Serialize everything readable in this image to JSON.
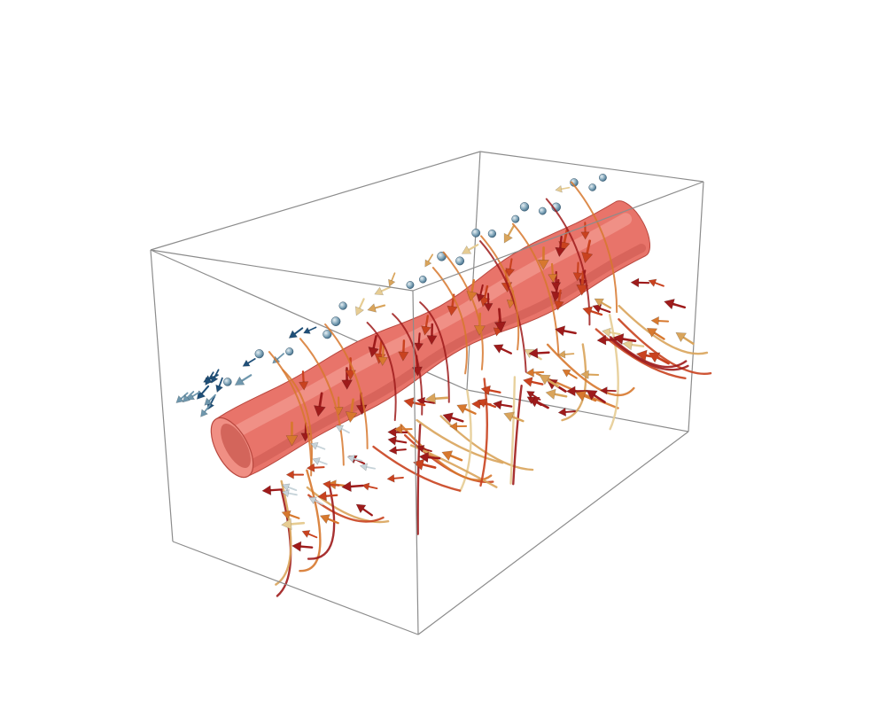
{
  "scene": {
    "background": "#ffffff",
    "box_color": "#8c8c8c",
    "tube_color": "#e8746a",
    "tube_highlight": "#f6a79c",
    "tube_shadow": "#b9483f",
    "palette": {
      "strong": "#9e1b1b",
      "medium": "#c9421f",
      "orange": "#d7782e",
      "gold": "#d9a45b",
      "cream": "#e6cc93",
      "pale": "#c6d3d9",
      "steel": "#6f97ad",
      "navy": "#1f4f78"
    }
  }
}
